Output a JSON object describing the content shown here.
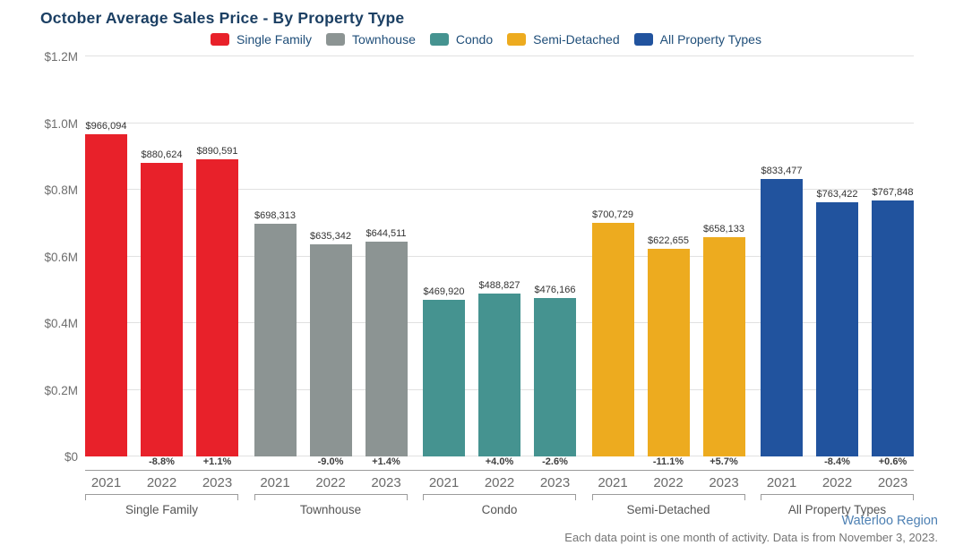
{
  "title": "October Average Sales Price - By Property Type",
  "legend": [
    {
      "name": "single-family",
      "label": "Single Family",
      "color": "#e8212a"
    },
    {
      "name": "townhouse",
      "label": "Townhouse",
      "color": "#8c9493"
    },
    {
      "name": "condo",
      "label": "Condo",
      "color": "#459390"
    },
    {
      "name": "semi-detached",
      "label": "Semi-Detached",
      "color": "#edab1f"
    },
    {
      "name": "all-property-types",
      "label": "All Property Types",
      "color": "#21539e"
    }
  ],
  "chart_data": {
    "type": "bar",
    "title": "October Average Sales Price - By Property Type",
    "categories": [
      "2021",
      "2022",
      "2023"
    ],
    "ylim": [
      0,
      1200000
    ],
    "ytick_values": [
      0,
      200000,
      400000,
      600000,
      800000,
      1000000,
      1200000
    ],
    "ytick_labels": [
      "$0",
      "$0.2M",
      "$0.4M",
      "$0.6M",
      "$0.8M",
      "$1.0M",
      "$1.2M"
    ],
    "grid": true,
    "legend_position": "top",
    "groups": [
      {
        "name": "Single Family",
        "color": "#e8212a",
        "values": [
          966094,
          880624,
          890591
        ],
        "value_labels": [
          "$966,094",
          "$880,624",
          "$890,591"
        ],
        "pct_labels": [
          "",
          "-8.8%",
          "+1.1%"
        ]
      },
      {
        "name": "Townhouse",
        "color": "#8c9493",
        "values": [
          698313,
          635342,
          644511
        ],
        "value_labels": [
          "$698,313",
          "$635,342",
          "$644,511"
        ],
        "pct_labels": [
          "",
          "-9.0%",
          "+1.4%"
        ]
      },
      {
        "name": "Condo",
        "color": "#459390",
        "values": [
          469920,
          488827,
          476166
        ],
        "value_labels": [
          "$469,920",
          "$488,827",
          "$476,166"
        ],
        "pct_labels": [
          "",
          "+4.0%",
          "-2.6%"
        ]
      },
      {
        "name": "Semi-Detached",
        "color": "#edab1f",
        "values": [
          700729,
          622655,
          658133
        ],
        "value_labels": [
          "$700,729",
          "$622,655",
          "$658,133"
        ],
        "pct_labels": [
          "",
          "-11.1%",
          "+5.7%"
        ]
      },
      {
        "name": "All Property Types",
        "color": "#21539e",
        "values": [
          833477,
          763422,
          767848
        ],
        "value_labels": [
          "$833,477",
          "$763,422",
          "$767,848"
        ],
        "pct_labels": [
          "",
          "-8.4%",
          "+0.6%"
        ]
      }
    ]
  },
  "footer": {
    "region": "Waterloo Region",
    "note": "Each data point is one month of activity. Data is from November 3, 2023."
  }
}
